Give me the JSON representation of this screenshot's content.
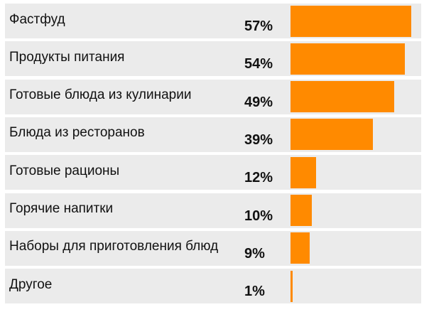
{
  "chart_data": {
    "type": "bar",
    "orientation": "horizontal",
    "categories": [
      "Фастфуд",
      "Продукты питания",
      "Готовые блюда из кулинарии",
      "Блюда из ресторанов",
      "Готовые рационы",
      "Горячие напитки",
      "Наборы для приготовления блюд",
      "Другое"
    ],
    "values": [
      57,
      54,
      49,
      39,
      12,
      10,
      9,
      1
    ],
    "value_labels": [
      "57%",
      "54%",
      "49%",
      "39%",
      "12%",
      "10%",
      "9%",
      "1%"
    ],
    "unit": "%",
    "xlim": [
      0,
      100
    ],
    "bar_color": "#ff8a00",
    "row_color": "#ebebeb",
    "grid": false,
    "legend": "none"
  }
}
